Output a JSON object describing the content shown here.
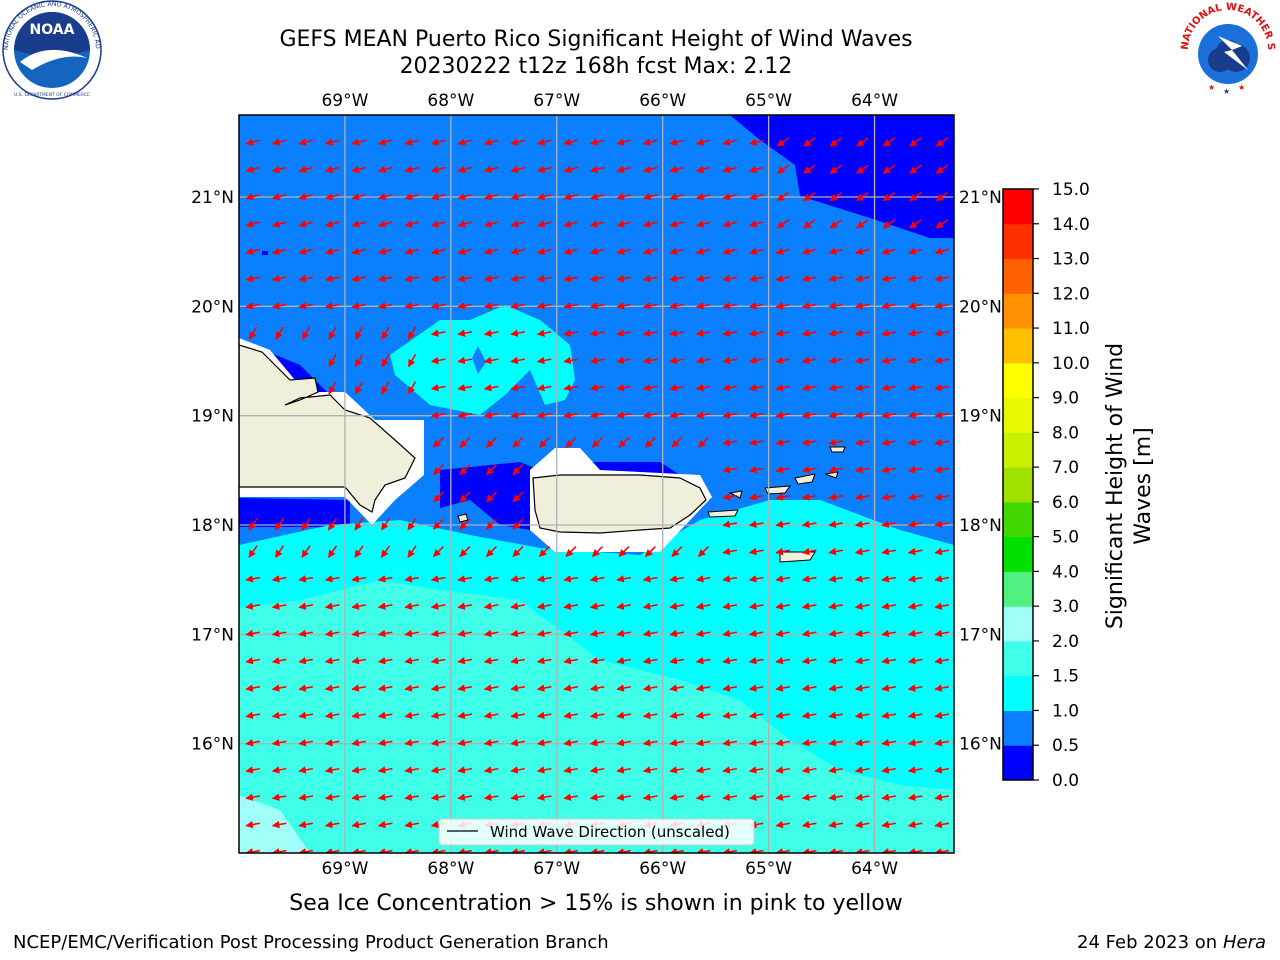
{
  "title": {
    "line1": "GEFS MEAN Puerto Rico Significant Height of Wind Waves",
    "line2": "20230222 t12z 168h fcst   Max: 2.12"
  },
  "caption": "Sea Ice Concentration > 15% is shown in pink to yellow",
  "footer": {
    "left": "NCEP/EMC/Verification Post Processing Product Generation Branch",
    "right_date": "24 Feb 2023 on",
    "right_host": "Hera"
  },
  "logos": {
    "noaa_text": "NOAA",
    "noaa_ring": "NATIONAL OCEANIC AND ATMOSPHERIC ADMINISTRATION",
    "noaa_ring_bottom": "U.S. DEPARTMENT OF COMMERCE",
    "nws_ring": "NATIONAL WEATHER SERVICE"
  },
  "map": {
    "lon_ticks": [
      "69°W",
      "68°W",
      "67°W",
      "66°W",
      "65°W",
      "64°W"
    ],
    "lat_ticks": [
      "21°N",
      "20°N",
      "19°N",
      "18°N",
      "17°N",
      "16°N"
    ],
    "lon_values": [
      -69,
      -68,
      -67,
      -66,
      -65,
      -64
    ],
    "lat_values": [
      21,
      20,
      19,
      18,
      17,
      16
    ],
    "lon_range": [
      -70,
      -63.25
    ],
    "lat_range": [
      15,
      21.75
    ],
    "legend_label": "Wind Wave Direction (unscaled)",
    "arrow_color": "#ff0000",
    "land_color": "#efefdb"
  },
  "colorbar": {
    "label_line1": "Significant Height of Wind",
    "label_line2": "Waves [m]",
    "ticks": [
      "0.0",
      "0.5",
      "1.0",
      "1.5",
      "2.0",
      "3.0",
      "4.0",
      "5.0",
      "6.0",
      "7.0",
      "8.0",
      "9.0",
      "10.0",
      "11.0",
      "12.0",
      "13.0",
      "14.0",
      "15.0"
    ],
    "colors": [
      "#0000ff",
      "#0a7fff",
      "#00ffff",
      "#40ffe8",
      "#a0fff8",
      "#50f080",
      "#00e000",
      "#40d800",
      "#a0e000",
      "#c8f000",
      "#e8f800",
      "#ffff00",
      "#ffc000",
      "#ff9000",
      "#ff6000",
      "#ff3000",
      "#ff0000"
    ]
  }
}
